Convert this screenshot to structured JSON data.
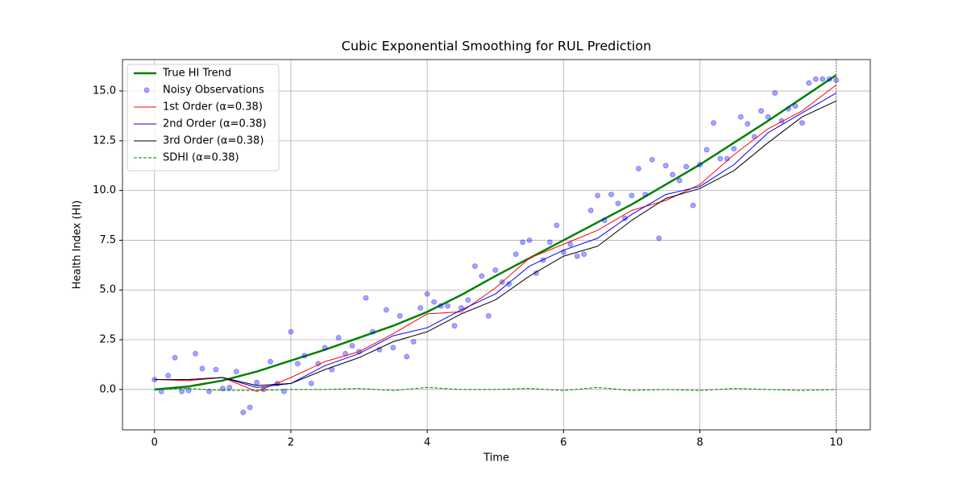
{
  "chart_data": {
    "type": "line",
    "title": "Cubic Exponential Smoothing for RUL Prediction",
    "x_label": "Time",
    "y_label": "Health Index (HI)",
    "xlim": [
      -0.47,
      10.5
    ],
    "ylim": [
      -2.03,
      16.58
    ],
    "xticks": [
      0,
      2,
      4,
      6,
      8,
      10
    ],
    "yticks": [
      {
        "value": 0,
        "label": "0.0"
      },
      2.5,
      {
        "value": 5,
        "label": "5.0"
      },
      7.5,
      {
        "value": 10,
        "label": "10.0"
      },
      12.5,
      {
        "value": 15,
        "label": "15.0"
      }
    ],
    "grid": true,
    "legend": "upper left",
    "vlines": [
      10
    ],
    "series": [
      {
        "name": "True HI Trend",
        "style": "line",
        "color": "#008000",
        "linewidth": 2.5,
        "x": [
          0,
          0.5,
          1,
          1.5,
          2,
          2.5,
          3,
          3.5,
          4,
          4.5,
          5,
          5.5,
          6,
          6.5,
          7,
          7.5,
          8,
          8.5,
          9,
          9.5,
          10
        ],
        "values": [
          0,
          0.15,
          0.45,
          0.9,
          1.45,
          2.0,
          2.6,
          3.2,
          3.9,
          4.75,
          5.7,
          6.6,
          7.5,
          8.4,
          9.3,
          10.3,
          11.3,
          12.4,
          13.5,
          14.65,
          15.8
        ]
      },
      {
        "name": "Noisy Observations",
        "style": "scatter",
        "color": "#0000ff",
        "alpha": 0.35,
        "x": [
          0,
          0.1,
          0.2,
          0.3,
          0.4,
          0.5,
          0.6,
          0.7,
          0.8,
          0.9,
          1,
          1.1,
          1.2,
          1.3,
          1.4,
          1.5,
          1.6,
          1.7,
          1.8,
          1.9,
          2,
          2.1,
          2.2,
          2.3,
          2.4,
          2.5,
          2.6,
          2.7,
          2.8,
          2.9,
          3,
          3.1,
          3.2,
          3.3,
          3.4,
          3.5,
          3.6,
          3.7,
          3.8,
          3.9,
          4,
          4.1,
          4.2,
          4.3,
          4.4,
          4.5,
          4.6,
          4.7,
          4.8,
          4.9,
          5,
          5.1,
          5.2,
          5.3,
          5.4,
          5.5,
          5.6,
          5.7,
          5.8,
          5.9,
          6,
          6.1,
          6.2,
          6.3,
          6.4,
          6.5,
          6.6,
          6.7,
          6.8,
          6.9,
          7,
          7.1,
          7.2,
          7.3,
          7.4,
          7.5,
          7.6,
          7.7,
          7.8,
          7.9,
          8,
          8.1,
          8.2,
          8.3,
          8.4,
          8.5,
          8.6,
          8.7,
          8.8,
          8.9,
          9,
          9.1,
          9.2,
          9.3,
          9.4,
          9.5,
          9.6,
          9.7,
          9.8,
          9.9,
          10
        ],
        "values": [
          0.5,
          -0.1,
          0.7,
          1.6,
          -0.1,
          -0.05,
          1.8,
          1.05,
          -0.1,
          1.0,
          0.05,
          0.1,
          0.9,
          -1.15,
          -0.9,
          0.35,
          0.0,
          1.4,
          0.3,
          -0.1,
          2.9,
          1.3,
          1.7,
          0.3,
          1.3,
          2.1,
          1.0,
          2.6,
          1.8,
          2.2,
          1.9,
          4.6,
          2.9,
          2.0,
          4.0,
          2.1,
          3.7,
          1.65,
          2.4,
          4.1,
          4.8,
          4.4,
          4.2,
          4.2,
          3.2,
          4.1,
          4.5,
          6.2,
          5.7,
          3.7,
          6.0,
          5.4,
          5.3,
          6.8,
          7.4,
          7.5,
          5.85,
          6.5,
          7.4,
          8.25,
          6.9,
          7.3,
          6.7,
          6.8,
          9.0,
          9.75,
          8.5,
          9.8,
          9.35,
          8.6,
          9.75,
          11.1,
          9.8,
          11.55,
          7.6,
          11.25,
          10.8,
          10.5,
          11.2,
          9.25,
          11.3,
          12.05,
          13.4,
          11.6,
          11.6,
          12.1,
          13.7,
          13.35,
          12.7,
          14.0,
          13.7,
          14.9,
          13.5,
          14.1,
          14.25,
          13.4,
          15.4,
          15.6,
          15.6,
          15.6,
          15.55
        ]
      },
      {
        "name": "1st Order (α=0.38)",
        "style": "line",
        "color": "#ff0000",
        "linewidth": 1,
        "x": [
          0,
          0.5,
          1,
          1.5,
          2,
          2.5,
          3,
          3.5,
          4,
          4.5,
          5,
          5.5,
          6,
          6.5,
          7,
          7.5,
          8,
          8.5,
          9,
          9.5,
          10
        ],
        "values": [
          0.5,
          0.45,
          0.6,
          -0.1,
          0.6,
          1.4,
          1.9,
          2.8,
          3.8,
          3.9,
          5.1,
          6.6,
          7.3,
          8.0,
          9.0,
          9.5,
          10.3,
          11.8,
          13.1,
          14.0,
          15.3
        ]
      },
      {
        "name": "2nd Order (α=0.38)",
        "style": "line",
        "color": "#0000ff",
        "linewidth": 1,
        "x": [
          0,
          0.5,
          1,
          1.5,
          2,
          2.5,
          3,
          3.5,
          4,
          4.5,
          5,
          5.5,
          6,
          6.5,
          7,
          7.5,
          8,
          8.5,
          9,
          9.5,
          10
        ],
        "values": [
          0.5,
          0.5,
          0.6,
          0.1,
          0.3,
          1.2,
          1.8,
          2.7,
          3.1,
          4.0,
          4.8,
          6.2,
          7.0,
          7.6,
          8.8,
          9.8,
          10.2,
          11.3,
          12.9,
          13.9,
          14.9
        ]
      },
      {
        "name": "3rd Order (α=0.38)",
        "style": "line",
        "color": "#000000",
        "linewidth": 1,
        "x": [
          0,
          0.5,
          1,
          1.5,
          2,
          2.5,
          3,
          3.5,
          4,
          4.5,
          5,
          5.5,
          6,
          6.5,
          7,
          7.5,
          8,
          8.5,
          9,
          9.5,
          10
        ],
        "values": [
          0.5,
          0.5,
          0.6,
          0.2,
          0.3,
          1.0,
          1.6,
          2.4,
          2.9,
          3.8,
          4.5,
          5.7,
          6.7,
          7.2,
          8.5,
          9.6,
          10.1,
          11.0,
          12.4,
          13.7,
          14.5
        ]
      },
      {
        "name": "SDHI (α=0.38)",
        "style": "line",
        "color": "#008000",
        "linewidth": 1,
        "dash": true,
        "x": [
          0,
          0.5,
          1,
          1.5,
          2,
          2.5,
          3,
          3.5,
          4,
          4.5,
          5,
          5.5,
          6,
          6.5,
          7,
          7.5,
          8,
          8.5,
          9,
          9.5,
          10
        ],
        "values": [
          0,
          0.05,
          -0.05,
          -0.05,
          0,
          0,
          0.05,
          -0.05,
          0.1,
          0,
          0,
          0.05,
          -0.05,
          0.1,
          -0.05,
          0,
          -0.05,
          0.05,
          0,
          -0.05,
          0
        ]
      }
    ]
  }
}
